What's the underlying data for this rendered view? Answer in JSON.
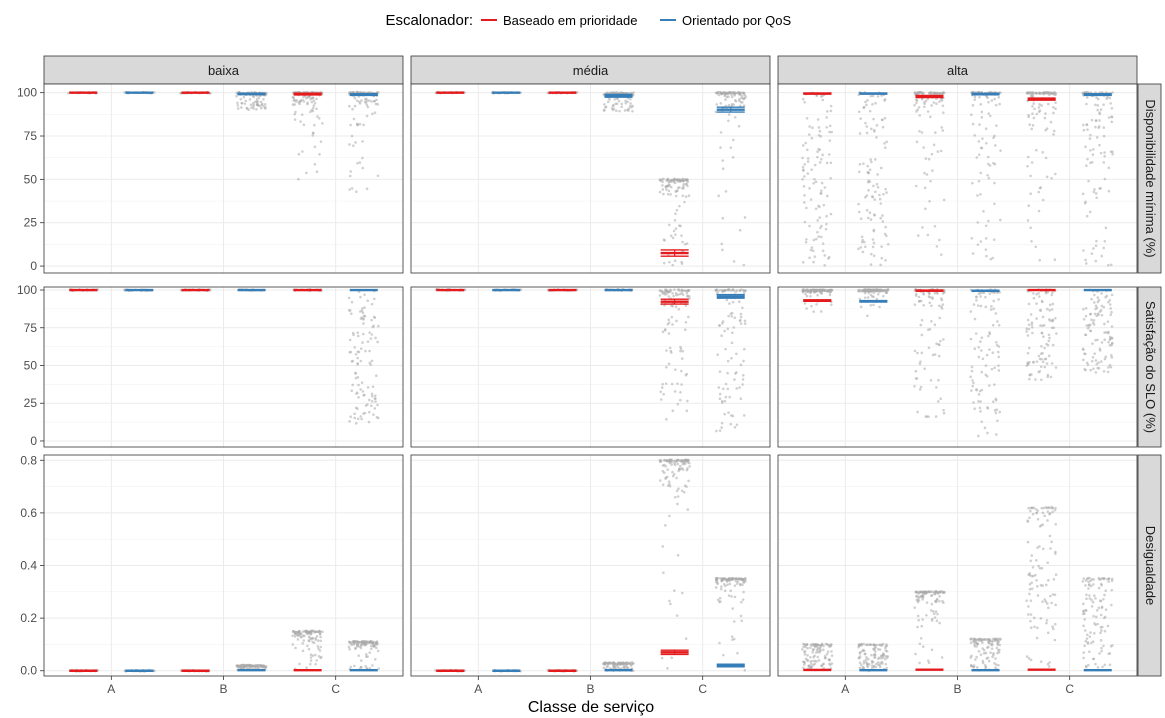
{
  "chart_data": {
    "type": "scatter",
    "xlabel": "Classe de serviço",
    "categories": [
      "A",
      "B",
      "C"
    ],
    "legend": {
      "title": "Escalonador:",
      "position": "top",
      "entries": [
        {
          "name": "Baseado em prioridade",
          "color": "#e41a1c"
        },
        {
          "name": "Orientado por QoS",
          "color": "#377eb8"
        }
      ]
    },
    "columns": [
      "baixa",
      "média",
      "alta"
    ],
    "rows": [
      {
        "label": "Disponibilidade mínima (%)",
        "ylim": [
          -4,
          105
        ],
        "ticks": [
          "0",
          "25",
          "50",
          "75",
          "100"
        ],
        "tick_values": [
          0,
          25,
          50,
          75,
          100
        ]
      },
      {
        "label": "Satisfação do SLO (%)",
        "ylim": [
          -4,
          102
        ],
        "ticks": [
          "0",
          "25",
          "50",
          "75",
          "100"
        ],
        "tick_values": [
          0,
          25,
          50,
          75,
          100
        ]
      },
      {
        "label": "Desigualdade",
        "ylim": [
          -0.02,
          0.82
        ],
        "ticks": [
          "0.0",
          "0.2",
          "0.4",
          "0.6",
          "0.8"
        ],
        "tick_values": [
          0,
          0.2,
          0.4,
          0.6,
          0.8
        ]
      }
    ],
    "series": [
      {
        "name": "Baseado em prioridade",
        "color": "#e41a1c",
        "offset": -0.25
      },
      {
        "name": "Orientado por QoS",
        "color": "#377eb8",
        "offset": 0.25
      }
    ],
    "means": [
      [
        [
          [
            100,
            100
          ],
          [
            100,
            99.3
          ],
          [
            99.2,
            98.9
          ]
        ],
        [
          [
            100,
            100
          ],
          [
            100,
            98.2
          ],
          [
            7.5,
            90.2
          ]
        ],
        [
          [
            99.5,
            99.5
          ],
          [
            97.8,
            99.2
          ],
          [
            96.3,
            98.9
          ]
        ]
      ],
      [
        [
          [
            100,
            100
          ],
          [
            100,
            100
          ],
          [
            100,
            100
          ]
        ],
        [
          [
            100,
            100
          ],
          [
            100,
            100
          ],
          [
            92.3,
            95.8
          ]
        ],
        [
          [
            93,
            92.5
          ],
          [
            99.6,
            99.5
          ],
          [
            100,
            100
          ]
        ]
      ],
      [
        [
          [
            0,
            0
          ],
          [
            0,
            0.002
          ],
          [
            0.002,
            0.002
          ]
        ],
        [
          [
            0,
            0
          ],
          [
            0,
            0.002
          ],
          [
            0.07,
            0.02
          ]
        ],
        [
          [
            0.003,
            0.002
          ],
          [
            0.004,
            0.002
          ],
          [
            0.004,
            0.002
          ]
        ]
      ]
    ],
    "errors": [
      [
        [
          [
            0,
            0
          ],
          [
            0,
            0.4
          ],
          [
            0.5,
            0.5
          ]
        ],
        [
          [
            0,
            0
          ],
          [
            0,
            0.8
          ],
          [
            1.8,
            1.4
          ]
        ],
        [
          [
            0.3,
            0.3
          ],
          [
            0.6,
            0.4
          ],
          [
            0.6,
            0.5
          ]
        ]
      ],
      [
        [
          [
            0,
            0
          ],
          [
            0,
            0
          ],
          [
            0,
            0
          ]
        ],
        [
          [
            0,
            0
          ],
          [
            0,
            0
          ],
          [
            1.6,
            1.2
          ]
        ],
        [
          [
            0.5,
            0.5
          ],
          [
            0.3,
            0.3
          ],
          [
            0,
            0
          ]
        ]
      ],
      [
        [
          [
            0,
            0
          ],
          [
            0,
            0
          ],
          [
            0,
            0
          ]
        ],
        [
          [
            0,
            0
          ],
          [
            0,
            0
          ],
          [
            0.008,
            0.005
          ]
        ],
        [
          [
            0,
            0
          ],
          [
            0,
            0
          ],
          [
            0,
            0
          ]
        ]
      ]
    ],
    "point_ranges": [
      [
        [
          [
            [
              100,
              100,
              1,
              1
            ],
            [
              100,
              100,
              1,
              1
            ]
          ],
          [
            [
              100,
              100,
              1,
              1
            ],
            [
              90,
              100,
              1,
              0.8
            ]
          ],
          [
            [
              50,
              100,
              1,
              0.3
            ],
            [
              42,
              100,
              1,
              0.3
            ]
          ]
        ],
        [
          [
            [
              100,
              100,
              1,
              1
            ],
            [
              100,
              100,
              1,
              1
            ]
          ],
          [
            [
              100,
              100,
              1,
              1
            ],
            [
              89,
              100,
              1,
              0.8
            ]
          ],
          [
            [
              0,
              50,
              0.9,
              0.3
            ],
            [
              0,
              100,
              0.9,
              0.2
            ]
          ]
        ],
        [
          [
            [
              0,
              100,
              0.15,
              0.2
            ],
            [
              0,
              100,
              0.15,
              0.2
            ]
          ],
          [
            [
              0,
              100,
              0.8,
              0.2
            ],
            [
              0,
              100,
              0.6,
              0.15
            ]
          ],
          [
            [
              0,
              100,
              0.8,
              0.2
            ],
            [
              0,
              100,
              0.5,
              0.2
            ]
          ]
        ]
      ],
      [
        [
          [
            [
              100,
              100,
              1,
              1
            ],
            [
              100,
              100,
              1,
              1
            ]
          ],
          [
            [
              100,
              100,
              1,
              1
            ],
            [
              100,
              100,
              1,
              1
            ]
          ],
          [
            [
              100,
              100,
              1,
              1
            ],
            [
              11,
              100,
              0.02,
              0.02
            ]
          ]
        ],
        [
          [
            [
              100,
              100,
              1,
              1
            ],
            [
              100,
              100,
              1,
              1
            ]
          ],
          [
            [
              100,
              100,
              1,
              1
            ],
            [
              100,
              100,
              1,
              1
            ]
          ],
          [
            [
              13,
              100,
              0.7,
              0.3
            ],
            [
              5,
              100,
              0.4,
              0.15
            ]
          ]
        ],
        [
          [
            [
              84,
              100,
              1,
              0.2
            ],
            [
              83,
              100,
              1,
              0.2
            ]
          ],
          [
            [
              15,
              100,
              0.7,
              0.25
            ],
            [
              3,
              100,
              0.4,
              0.2
            ]
          ],
          [
            [
              40,
              100,
              0.3,
              0.35
            ],
            [
              45,
              100,
              0.2,
              0.3
            ]
          ]
        ]
      ],
      [
        [
          [
            [
              0,
              0,
              1,
              1
            ],
            [
              0,
              0,
              1,
              1
            ]
          ],
          [
            [
              0,
              0,
              1,
              1
            ],
            [
              0,
              0.02,
              1,
              0.6
            ]
          ],
          [
            [
              0,
              0.15,
              1,
              0.4
            ],
            [
              0,
              0.11,
              1,
              0.4
            ]
          ]
        ],
        [
          [
            [
              0,
              0,
              1,
              1
            ],
            [
              0,
              0,
              1,
              1
            ]
          ],
          [
            [
              0,
              0,
              1,
              1
            ],
            [
              0,
              0.03,
              1,
              0.6
            ]
          ],
          [
            [
              0,
              0.8,
              1,
              0.25
            ],
            [
              0,
              0.35,
              1,
              0.25
            ]
          ]
        ],
        [
          [
            [
              0,
              0.1,
              0.3,
              0.2
            ],
            [
              0,
              0.1,
              0.3,
              0.2
            ]
          ],
          [
            [
              0,
              0.3,
              0.9,
              0.25
            ],
            [
              0,
              0.12,
              0.5,
              0.25
            ]
          ],
          [
            [
              0,
              0.62,
              0.3,
              0.25
            ],
            [
              0,
              0.35,
              0.3,
              0.25
            ]
          ]
        ]
      ]
    ]
  }
}
